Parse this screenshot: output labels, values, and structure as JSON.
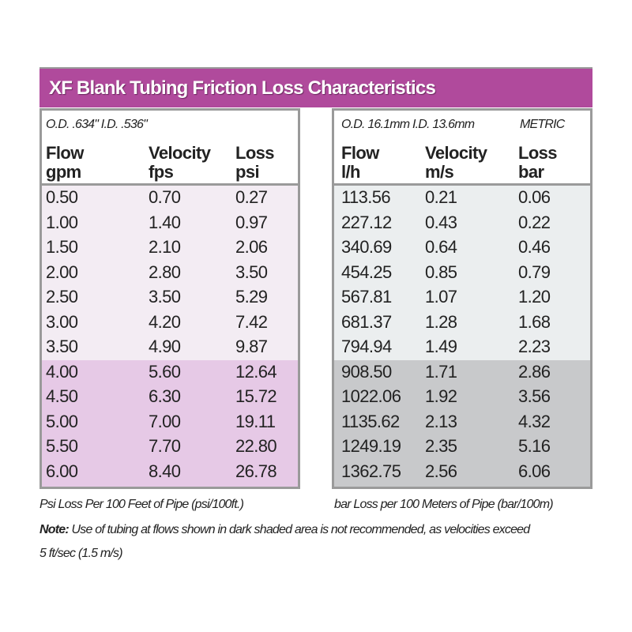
{
  "title": "XF Blank Tubing Friction Loss Characteristics",
  "colors": {
    "title_bar": "#b04a9c",
    "imperial_light": "#f3ecf3",
    "imperial_dark": "#e6c9e6",
    "metric_light": "#ebeeef",
    "metric_dark": "#c8c9cb",
    "border": "#9a9a9a"
  },
  "imperial": {
    "spec": "O.D. .634\" I.D. .536\"",
    "headers": [
      {
        "name": "Flow",
        "unit": "gpm"
      },
      {
        "name": "Velocity",
        "unit": "fps"
      },
      {
        "name": "Loss",
        "unit": "psi"
      }
    ],
    "rows": [
      [
        "0.50",
        "0.70",
        "0.27"
      ],
      [
        "1.00",
        "1.40",
        "0.97"
      ],
      [
        "1.50",
        "2.10",
        "2.06"
      ],
      [
        "2.00",
        "2.80",
        "3.50"
      ],
      [
        "2.50",
        "3.50",
        "5.29"
      ],
      [
        "3.00",
        "4.20",
        "7.42"
      ],
      [
        "3.50",
        "4.90",
        "9.87"
      ],
      [
        "4.00",
        "5.60",
        "12.64"
      ],
      [
        "4.50",
        "6.30",
        "15.72"
      ],
      [
        "5.00",
        "7.00",
        "19.11"
      ],
      [
        "5.50",
        "7.70",
        "22.80"
      ],
      [
        "6.00",
        "8.40",
        "26.78"
      ]
    ],
    "dark_shaded_from_row": 7,
    "footer": "Psi Loss Per 100 Feet of Pipe (psi/100ft.)"
  },
  "metric": {
    "spec": "O.D. 16.1mm I.D. 13.6mm",
    "label": "METRIC",
    "headers": [
      {
        "name": "Flow",
        "unit": "l/h"
      },
      {
        "name": "Velocity",
        "unit": "m/s"
      },
      {
        "name": "Loss",
        "unit": "bar"
      }
    ],
    "rows": [
      [
        "113.56",
        "0.21",
        "0.06"
      ],
      [
        "227.12",
        "0.43",
        "0.22"
      ],
      [
        "340.69",
        "0.64",
        "0.46"
      ],
      [
        "454.25",
        "0.85",
        "0.79"
      ],
      [
        "567.81",
        "1.07",
        "1.20"
      ],
      [
        "681.37",
        "1.28",
        "1.68"
      ],
      [
        "794.94",
        "1.49",
        "2.23"
      ],
      [
        "908.50",
        "1.71",
        "2.86"
      ],
      [
        "1022.06",
        "1.92",
        "3.56"
      ],
      [
        "1135.62",
        "2.13",
        "4.32"
      ],
      [
        "1249.19",
        "2.35",
        "5.16"
      ],
      [
        "1362.75",
        "2.56",
        "6.06"
      ]
    ],
    "dark_shaded_from_row": 7,
    "footer": "bar Loss per 100 Meters of Pipe (bar/100m)"
  },
  "note": {
    "label": "Note:",
    "text": " Use of tubing at flows shown in dark shaded area is not recommended, as velocities exceed",
    "text2": "5 ft/sec (1.5 m/s)"
  }
}
